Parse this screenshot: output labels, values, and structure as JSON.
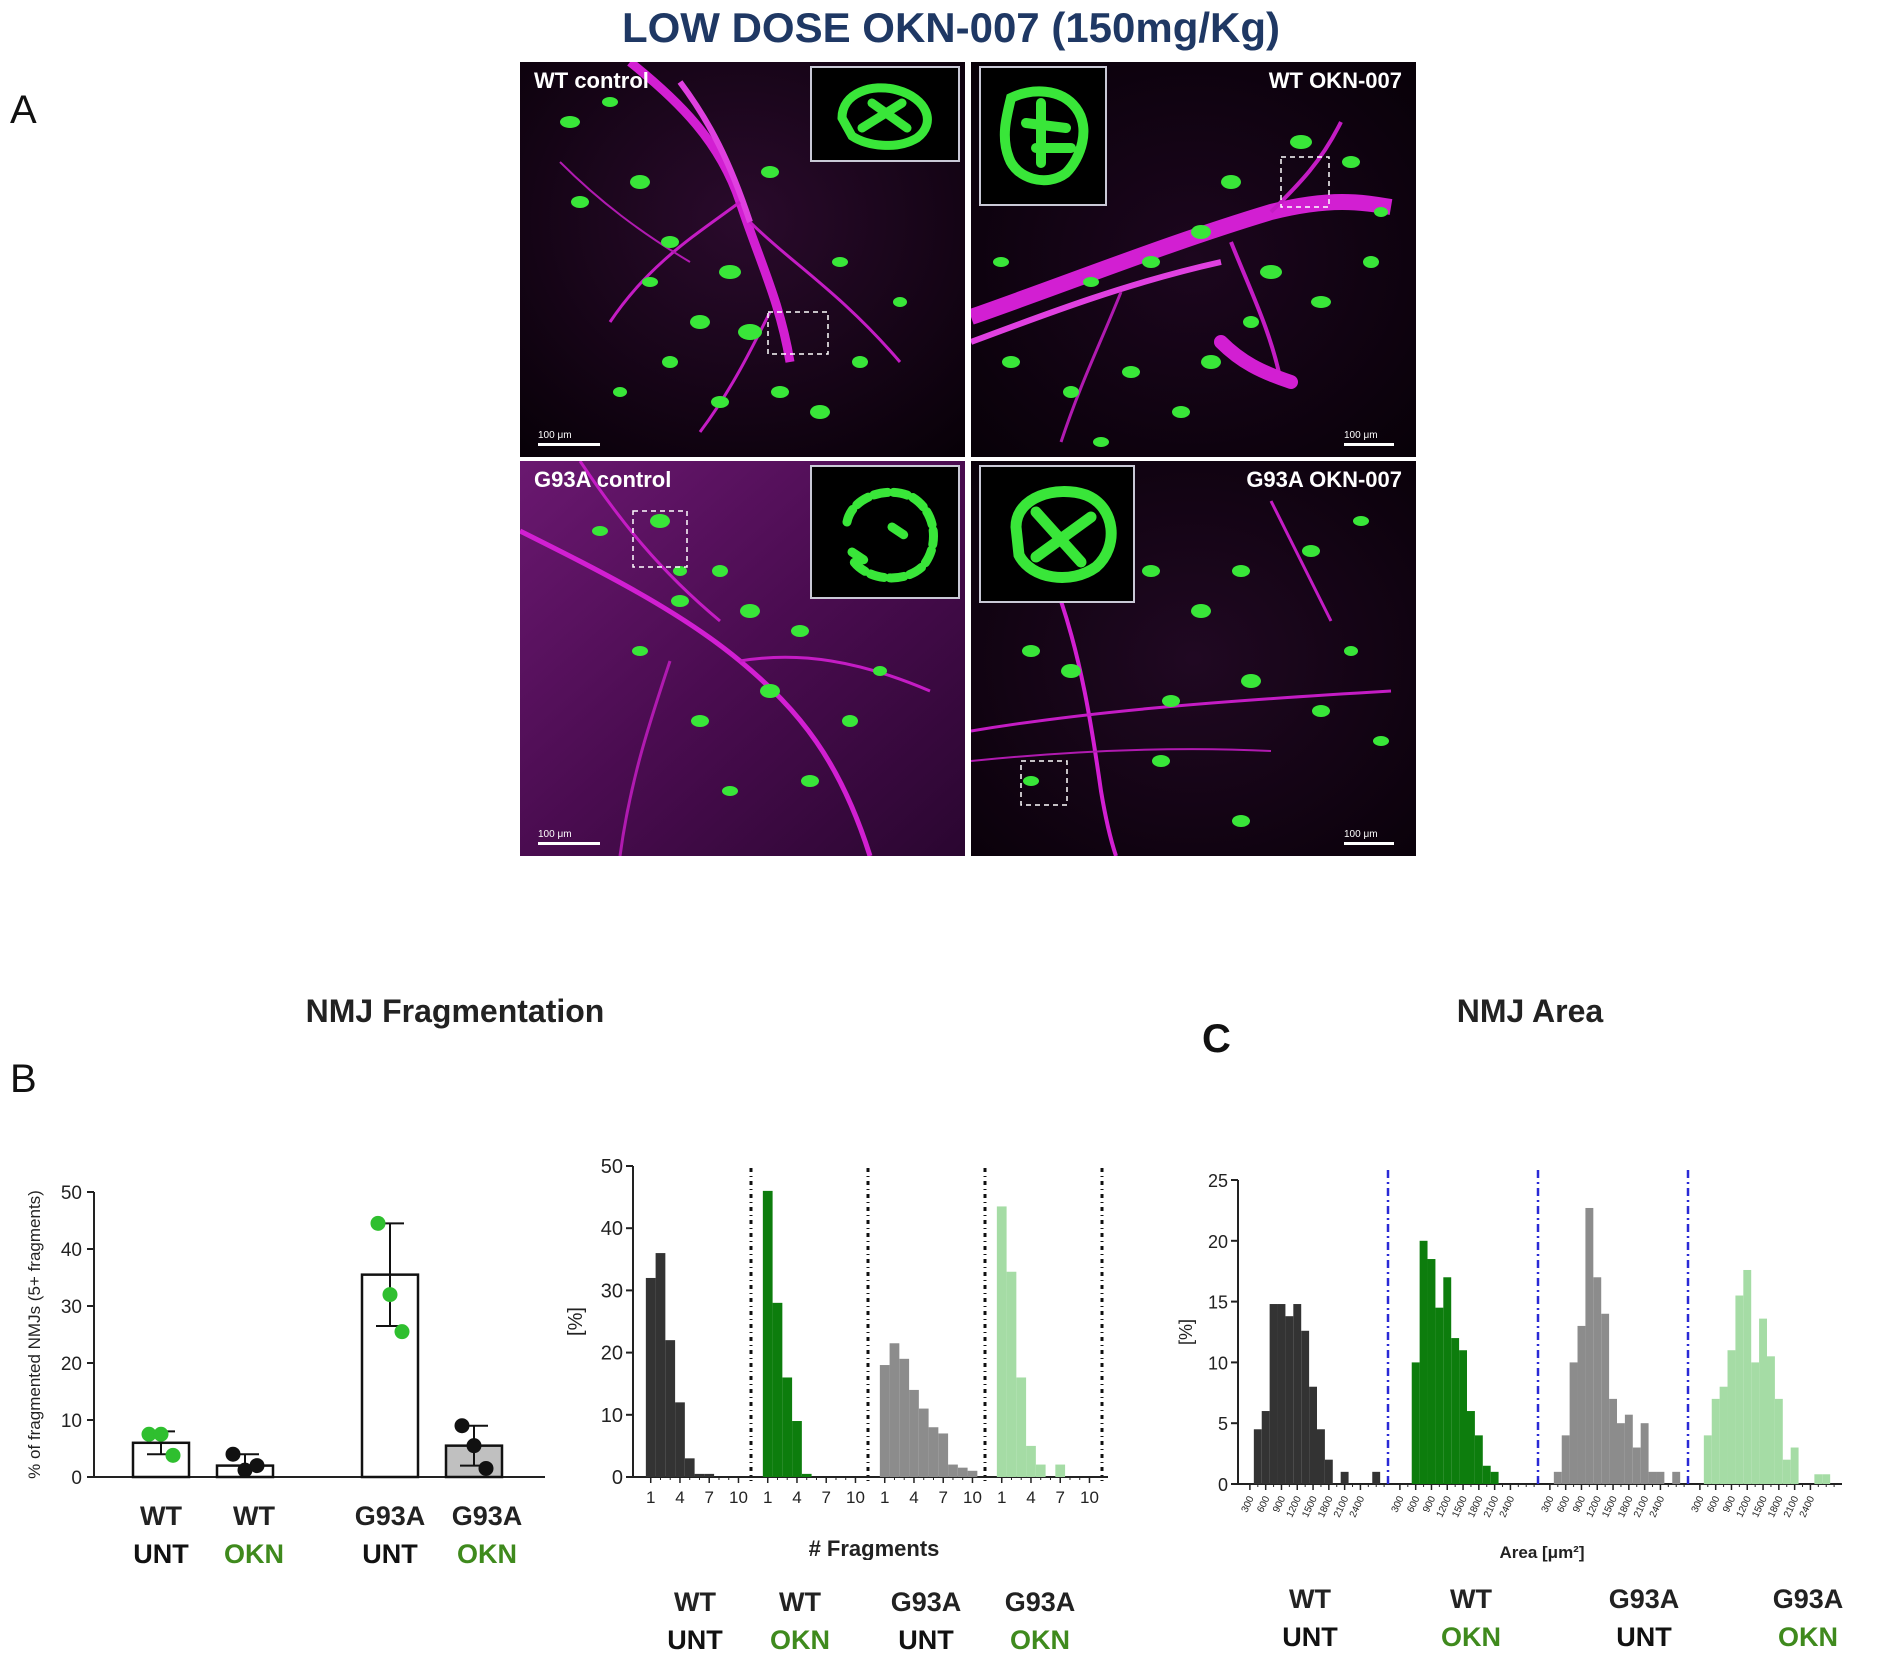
{
  "figure": {
    "title": "LOW DOSE OKN-007 (150mg/Kg)",
    "panel_labels": [
      "A",
      "B",
      "C"
    ],
    "section_titles": {
      "fragmentation": "NMJ Fragmentation",
      "area": "NMJ Area"
    }
  },
  "micrographs": [
    {
      "label": "WT control",
      "scalebar": "100 μm"
    },
    {
      "label": "WT OKN-007",
      "scalebar": "100 μm"
    },
    {
      "label": "G93A control",
      "scalebar": "100 μm"
    },
    {
      "label": "G93A OKN-007",
      "scalebar": "100 μm"
    }
  ],
  "groups": [
    {
      "line1": "WT",
      "line2": "UNT",
      "kind": "unt"
    },
    {
      "line1": "WT",
      "line2": "OKN",
      "kind": "okn"
    },
    {
      "line1": "G93A",
      "line2": "UNT",
      "kind": "unt"
    },
    {
      "line1": "G93A",
      "line2": "OKN",
      "kind": "okn"
    }
  ],
  "colors": {
    "nerve": "#d21fd2",
    "nmj": "#39e639",
    "wt_unt": "#333333",
    "wt_okn": "#0d7d0d",
    "g93a_unt": "#8c8c8c",
    "g93a_okn": "#a5dca5",
    "okn_text": "#3f8a1d",
    "divider": "#2a2ad6"
  },
  "chart_data": [
    {
      "id": "B-left",
      "type": "bar",
      "ylabel": "% of fragmented NMJs (5+ fragments)",
      "ylim": [
        0,
        50
      ],
      "yticks": [
        0,
        10,
        20,
        30,
        40,
        50
      ],
      "categories": [
        "WT UNT",
        "WT OKN",
        "G93A UNT",
        "G93A OKN"
      ],
      "values": [
        6,
        2,
        35.5,
        5.5
      ],
      "sd": [
        2,
        2,
        9,
        3.5
      ],
      "points": [
        [
          7.5,
          7.5,
          3.8
        ],
        [
          4,
          1.2,
          2
        ],
        [
          44.5,
          32,
          25.5
        ],
        [
          9,
          5.5,
          1.5
        ]
      ],
      "bar_fill": [
        "#ffffff",
        "#ffffff",
        "#ffffff",
        "#c0c0c0"
      ],
      "point_color": [
        "#2fbf2f",
        "#111111",
        "#2fbf2f",
        "#111111"
      ]
    },
    {
      "id": "B-right",
      "type": "bar",
      "ylabel": "[%]",
      "xlabel": "# Fragments",
      "ylim": [
        0,
        50
      ],
      "yticks": [
        0,
        10,
        20,
        30,
        40,
        50
      ],
      "xtick_labels": [
        "1",
        "4",
        "7",
        "10"
      ],
      "series": [
        {
          "group": "WT UNT",
          "values": [
            32,
            36,
            22,
            12,
            3,
            0.5,
            0.5,
            0,
            0,
            0
          ]
        },
        {
          "group": "WT OKN",
          "values": [
            46,
            28,
            16,
            9,
            0.5,
            0,
            0,
            0,
            0,
            0
          ]
        },
        {
          "group": "G93A UNT",
          "values": [
            18,
            21.5,
            19,
            14,
            11,
            8,
            7,
            2,
            1.5,
            1
          ]
        },
        {
          "group": "G93A OKN",
          "values": [
            43.5,
            33,
            16,
            5,
            2,
            0,
            2,
            0,
            0,
            0
          ]
        }
      ]
    },
    {
      "id": "C",
      "type": "bar",
      "ylabel": "[%]",
      "xlabel": "Area [μm²]",
      "ylim": [
        0,
        25
      ],
      "yticks": [
        0,
        5,
        10,
        15,
        20,
        25
      ],
      "xtick_labels": [
        "300",
        "600",
        "900",
        "1200",
        "1500",
        "1800",
        "2100",
        "2400"
      ],
      "series": [
        {
          "group": "WT UNT",
          "values": [
            0,
            4.5,
            6,
            14.8,
            14.8,
            13.8,
            14.8,
            12.6,
            8,
            4.5,
            2,
            0,
            1,
            0,
            0,
            0,
            1,
            0
          ]
        },
        {
          "group": "WT OKN",
          "values": [
            0,
            0,
            10,
            20,
            18.5,
            14.5,
            17,
            12,
            11,
            6,
            4,
            1.5,
            1,
            0,
            0,
            0,
            0,
            0
          ]
        },
        {
          "group": "G93A UNT",
          "values": [
            0,
            1,
            4,
            10,
            13,
            22.7,
            17,
            14,
            7,
            5,
            5.7,
            3,
            5,
            1,
            1,
            0,
            1,
            0
          ]
        },
        {
          "group": "G93A OKN",
          "values": [
            0,
            4,
            7,
            8,
            11,
            15.5,
            17.6,
            10,
            13.6,
            10.5,
            7,
            2,
            3,
            0,
            0,
            0.8,
            0.8,
            0
          ]
        }
      ]
    }
  ]
}
